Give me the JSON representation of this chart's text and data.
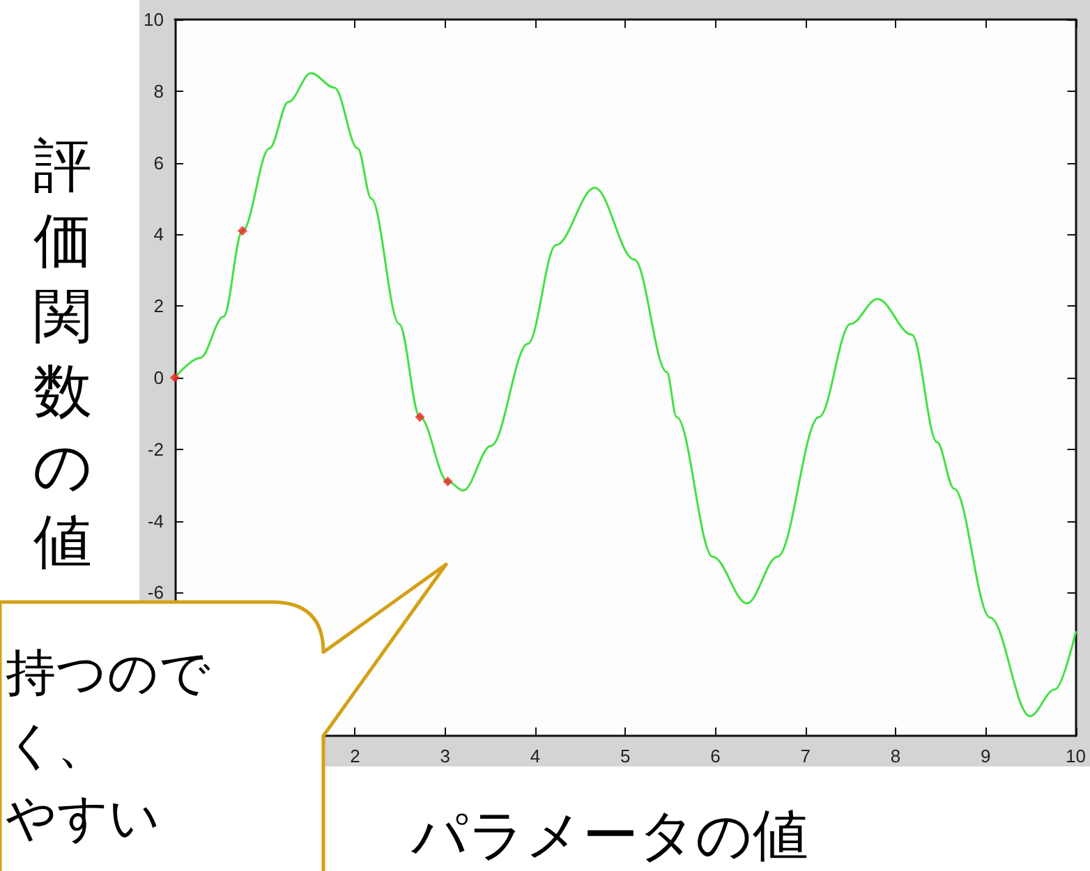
{
  "chart_data": {
    "type": "line",
    "xlabel": "パラメータの値",
    "ylabel": "評価関数の値",
    "annotations": [
      "持つので",
      "く、",
      "やすい"
    ],
    "xlim": [
      0,
      10
    ],
    "ylim": [
      -10,
      10
    ],
    "xticks": [
      2,
      3,
      4,
      5,
      6,
      7,
      8,
      9,
      10
    ],
    "yticks": [
      -6,
      -4,
      -2,
      0,
      2,
      4,
      6,
      8,
      10
    ],
    "grid": false,
    "series": [
      {
        "color": "#44e044",
        "marker": "none",
        "x": [
          0,
          0.28,
          0.54,
          0.75,
          1.05,
          1.26,
          1.51,
          1.77,
          2.03,
          2.18,
          2.49,
          2.72,
          3.03,
          3.2,
          3.51,
          3.92,
          4.23,
          4.66,
          5.1,
          5.46,
          5.57,
          5.97,
          6.35,
          6.69,
          7.15,
          7.5,
          7.8,
          8.18,
          8.46,
          8.65,
          9.05,
          9.49,
          9.77,
          10
        ],
        "values": [
          0,
          0.55,
          1.7,
          4.1,
          6.4,
          7.7,
          8.5,
          8.1,
          6.4,
          5.0,
          1.5,
          -1.1,
          -2.9,
          -3.15,
          -1.9,
          0.95,
          3.7,
          5.3,
          3.3,
          0.16,
          -1.1,
          -5.0,
          -6.3,
          -5.0,
          -1.1,
          1.5,
          2.2,
          1.2,
          -1.8,
          -3.1,
          -6.7,
          -9.45,
          -8.7,
          -7.1
        ]
      },
      {
        "type": "scatter",
        "color": "#ee2222",
        "marker": "diamond",
        "x": [
          0,
          0.75,
          2.72,
          3.03
        ],
        "values": [
          0,
          4.1,
          -1.1,
          -2.9
        ]
      }
    ]
  }
}
